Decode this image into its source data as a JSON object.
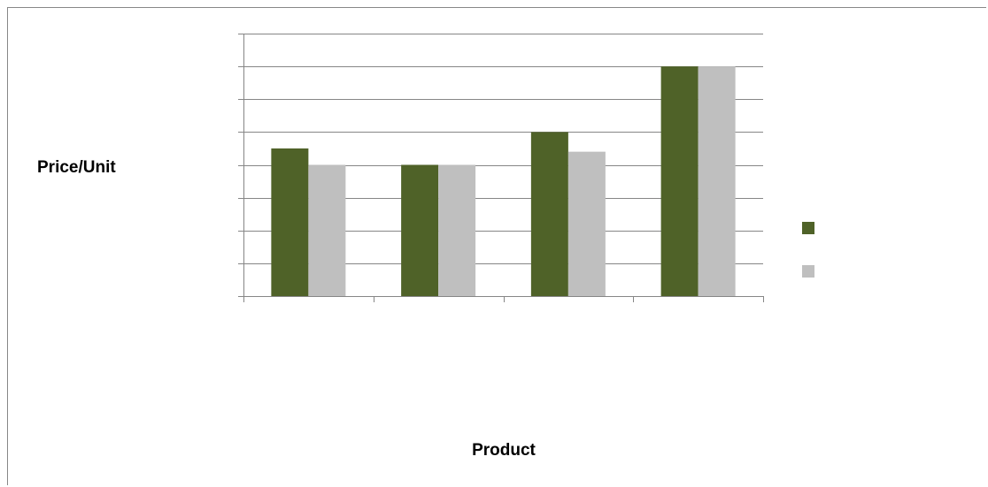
{
  "chart_data": {
    "type": "bar",
    "xlabel": "Product",
    "ylabel": "Price/Unit",
    "categories": [
      "",
      "",
      "",
      ""
    ],
    "ylim": [
      0,
      8
    ],
    "ytick_step": 1,
    "grid": true,
    "legend_position": "right",
    "series": [
      {
        "name": "",
        "color": "#4F6228",
        "values": [
          4.5,
          4.0,
          5.0,
          7.0
        ]
      },
      {
        "name": "",
        "color": "#BFBFBF",
        "values": [
          4.0,
          4.0,
          4.4,
          7.0
        ]
      }
    ]
  }
}
